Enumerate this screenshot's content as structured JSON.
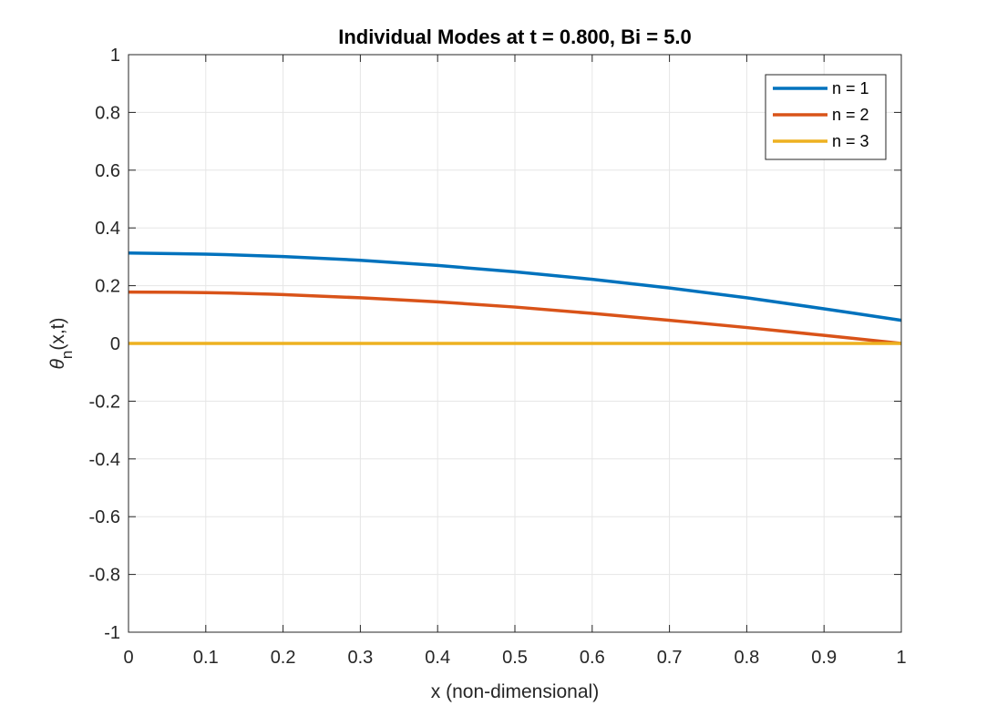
{
  "chart_data": {
    "type": "line",
    "title": "Individual Modes at t = 0.800, Bi = 5.0",
    "xlabel": "x (non-dimensional)",
    "ylabel": {
      "symbol": "θ",
      "subscript": "n",
      "suffix": "(x,t)"
    },
    "xlim": [
      0,
      1
    ],
    "ylim": [
      -1,
      1
    ],
    "grid": true,
    "legend_position": "top-right",
    "x_ticks": [
      0,
      0.1,
      0.2,
      0.3,
      0.4,
      0.5,
      0.6,
      0.7,
      0.8,
      0.9,
      1
    ],
    "x_tick_labels": [
      "0",
      "0.1",
      "0.2",
      "0.3",
      "0.4",
      "0.5",
      "0.6",
      "0.7",
      "0.8",
      "0.9",
      "1"
    ],
    "y_ticks": [
      -1,
      -0.8,
      -0.6,
      -0.4,
      -0.2,
      0,
      0.2,
      0.4,
      0.6,
      0.8,
      1
    ],
    "y_tick_labels": [
      "-1",
      "-0.8",
      "-0.6",
      "-0.4",
      "-0.2",
      "0",
      "0.2",
      "0.4",
      "0.6",
      "0.8",
      "1"
    ],
    "x": [
      0,
      0.1,
      0.2,
      0.3,
      0.4,
      0.5,
      0.6,
      0.7,
      0.8,
      0.9,
      1.0
    ],
    "series": [
      {
        "name": "n = 1",
        "color": "#0072BD",
        "values": [
          0.313,
          0.309,
          0.301,
          0.288,
          0.27,
          0.248,
          0.222,
          0.192,
          0.158,
          0.12,
          0.08
        ]
      },
      {
        "name": "n = 2",
        "color": "#D95319",
        "values": [
          0.178,
          0.176,
          0.169,
          0.158,
          0.144,
          0.126,
          0.104,
          0.08,
          0.055,
          0.028,
          0.0
        ]
      },
      {
        "name": "n = 3",
        "color": "#EDB120",
        "values": [
          0,
          0,
          0,
          0,
          0,
          0,
          0,
          0,
          0,
          0,
          0
        ]
      }
    ]
  }
}
